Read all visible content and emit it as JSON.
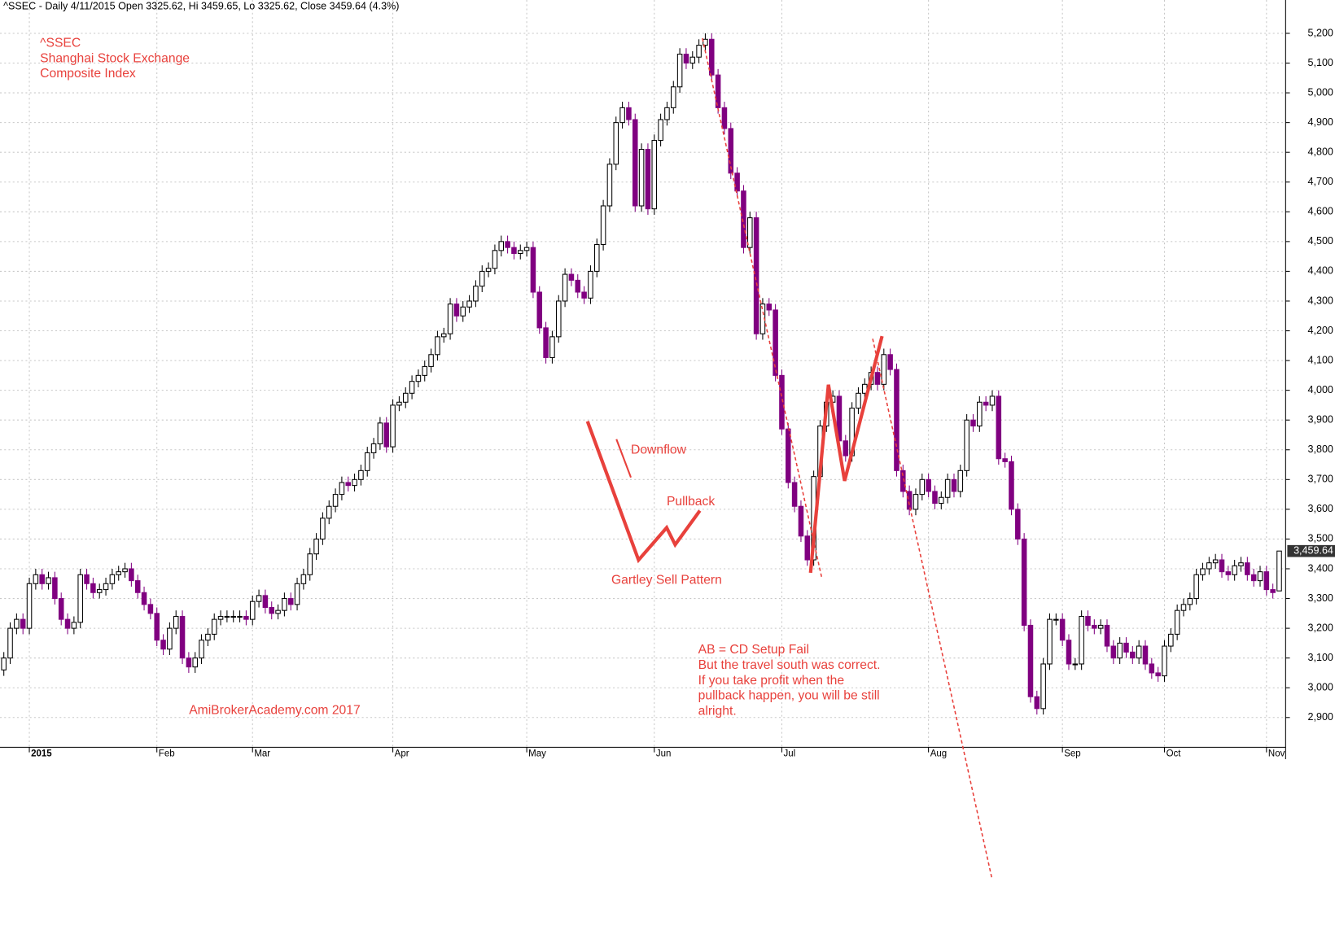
{
  "chart_data": {
    "type": "candlestick",
    "subtitle": "^SSEC - Daily 4/11/2015 Open 3325.62, Hi 3459.65, Lo 3325.62, Close 3459.64 (4.3%)",
    "title": [
      "^SSEC",
      "Shanghai Stock Exchange",
      "Composite Index"
    ],
    "annotations": [
      "AmiBrokerAcademy.com  2017",
      "Downflow",
      "Pullback",
      "Gartley Sell Pattern",
      "AB = CD Setup Fail",
      "But the travel south was correct.",
      "If you take profit when the",
      "pullback happen, you will be still",
      "alright."
    ],
    "last_label": "3,459.64",
    "up_color": "#ffffff",
    "down_color": "#800080",
    "grid": true,
    "xlim": [
      -0.6,
      201
    ],
    "ylim": [
      2800,
      5312
    ],
    "xticks": [
      {
        "value": 4,
        "label": "2015"
      },
      {
        "value": 24,
        "label": "Feb"
      },
      {
        "value": 39,
        "label": "Mar"
      },
      {
        "value": 61,
        "label": "Apr"
      },
      {
        "value": 82,
        "label": "May"
      },
      {
        "value": 102,
        "label": "Jun"
      },
      {
        "value": 122,
        "label": "Jul"
      },
      {
        "value": 145,
        "label": "Aug"
      },
      {
        "value": 166,
        "label": "Sep"
      },
      {
        "value": 182,
        "label": "Oct"
      },
      {
        "value": 198,
        "label": "Nov"
      }
    ],
    "yticks": [
      {
        "value": 2900,
        "label": "2,900"
      },
      {
        "value": 3000,
        "label": "3,000"
      },
      {
        "value": 3100,
        "label": "3,100"
      },
      {
        "value": 3200,
        "label": "3,200"
      },
      {
        "value": 3300,
        "label": "3,300"
      },
      {
        "value": 3400,
        "label": "3,400"
      },
      {
        "value": 3500,
        "label": "3,500"
      },
      {
        "value": 3600,
        "label": "3,600"
      },
      {
        "value": 3700,
        "label": "3,700"
      },
      {
        "value": 3800,
        "label": "3,800"
      },
      {
        "value": 3900,
        "label": "3,900"
      },
      {
        "value": 4000,
        "label": "4,000"
      },
      {
        "value": 4100,
        "label": "4,100"
      },
      {
        "value": 4200,
        "label": "4,200"
      },
      {
        "value": 4300,
        "label": "4,300"
      },
      {
        "value": 4400,
        "label": "4,400"
      },
      {
        "value": 4500,
        "label": "4,500"
      },
      {
        "value": 4600,
        "label": "4,600"
      },
      {
        "value": 4700,
        "label": "4,700"
      },
      {
        "value": 4800,
        "label": "4,800"
      },
      {
        "value": 4900,
        "label": "4,900"
      },
      {
        "value": 5000,
        "label": "5,000"
      },
      {
        "value": 5100,
        "label": "5,100"
      },
      {
        "value": 5200,
        "label": "5,200"
      }
    ],
    "open": [
      3060,
      3100,
      3200,
      3230,
      3200,
      3350,
      3380,
      3350,
      3370,
      3300,
      3230,
      3200,
      3220,
      3380,
      3350,
      3320,
      3330,
      3350,
      3380,
      3390,
      3400,
      3360,
      3320,
      3280,
      3250,
      3160,
      3130,
      3200,
      3240,
      3100,
      3070,
      3100,
      3160,
      3180,
      3230,
      3240,
      3240,
      3240,
      3240,
      3230,
      3290,
      3310,
      3270,
      3250,
      3260,
      3300,
      3280,
      3350,
      3380,
      3450,
      3500,
      3570,
      3610,
      3650,
      3690,
      3680,
      3700,
      3730,
      3790,
      3820,
      3890,
      3810,
      3950,
      3960,
      3990,
      4030,
      4050,
      4080,
      4120,
      4180,
      4190,
      4290,
      4250,
      4280,
      4300,
      4350,
      4400,
      4410,
      4470,
      4500,
      4480,
      4460,
      4470,
      4480,
      4330,
      4210,
      4110,
      4180,
      4300,
      4390,
      4370,
      4330,
      4310,
      4400,
      4490,
      4620,
      4760,
      4900,
      4950,
      4910,
      4620,
      4810,
      4610,
      4840,
      4910,
      4950,
      5020,
      5130,
      5100,
      5120,
      5160,
      5180,
      5060,
      4950,
      4880,
      4730,
      4670,
      4480,
      4580,
      4190,
      4290,
      4270,
      4050,
      3870,
      3690,
      3610,
      3510,
      3430,
      3710,
      3880,
      3960,
      3980,
      3830,
      3780,
      3940,
      3990,
      4020,
      4060,
      4020,
      4120,
      4070,
      3730,
      3660,
      3600,
      3650,
      3700,
      3660,
      3620,
      3640,
      3700,
      3660,
      3730,
      3900,
      3880,
      3960,
      3950,
      3980,
      3770,
      3760,
      3600,
      3500,
      3210,
      2970,
      2930,
      3080,
      3230,
      3230,
      3160,
      3080,
      3080,
      3240,
      3210,
      3200,
      3210,
      3140,
      3100,
      3150,
      3120,
      3100,
      3140,
      3080,
      3050,
      3040,
      3140,
      3180,
      3260,
      3280,
      3300,
      3380,
      3400,
      3420,
      3430,
      3390,
      3380,
      3410,
      3420,
      3380,
      3360,
      3390,
      3330,
      3325.62
    ],
    "high": [
      3120,
      3220,
      3250,
      3250,
      3370,
      3400,
      3400,
      3390,
      3390,
      3320,
      3250,
      3240,
      3400,
      3400,
      3370,
      3350,
      3370,
      3400,
      3410,
      3420,
      3420,
      3380,
      3340,
      3300,
      3270,
      3180,
      3220,
      3260,
      3260,
      3120,
      3120,
      3180,
      3200,
      3250,
      3260,
      3260,
      3260,
      3260,
      3260,
      3310,
      3330,
      3330,
      3290,
      3280,
      3320,
      3320,
      3370,
      3400,
      3470,
      3520,
      3590,
      3630,
      3670,
      3710,
      3710,
      3720,
      3750,
      3810,
      3840,
      3910,
      3910,
      3970,
      3980,
      4010,
      4050,
      4070,
      4100,
      4140,
      4200,
      4210,
      4310,
      4310,
      4300,
      4320,
      4370,
      4420,
      4430,
      4490,
      4520,
      4520,
      4500,
      4490,
      4500,
      4500,
      4350,
      4230,
      4200,
      4320,
      4410,
      4410,
      4390,
      4350,
      4420,
      4510,
      4640,
      4780,
      4920,
      4970,
      4970,
      4930,
      4830,
      4830,
      4860,
      4930,
      4970,
      5040,
      5150,
      5150,
      5140,
      5180,
      5200,
      5200,
      5080,
      4970,
      4900,
      4750,
      4690,
      4600,
      4600,
      4310,
      4310,
      4290,
      4070,
      3890,
      3710,
      3630,
      3530,
      3730,
      3900,
      3980,
      4000,
      4000,
      3850,
      3960,
      4010,
      4040,
      4080,
      4080,
      4140,
      4140,
      4090,
      3750,
      3680,
      3670,
      3720,
      3720,
      3680,
      3660,
      3720,
      3720,
      3750,
      3920,
      3920,
      3980,
      3980,
      4000,
      4000,
      3790,
      3780,
      3620,
      3520,
      3230,
      2990,
      3100,
      3250,
      3250,
      3250,
      3180,
      3100,
      3260,
      3260,
      3230,
      3230,
      3230,
      3160,
      3170,
      3170,
      3140,
      3160,
      3160,
      3100,
      3070,
      3160,
      3200,
      3280,
      3300,
      3320,
      3400,
      3420,
      3440,
      3450,
      3450,
      3410,
      3430,
      3440,
      3440,
      3400,
      3410,
      3410,
      3350,
      3459.65
    ],
    "low": [
      3040,
      3080,
      3180,
      3180,
      3180,
      3330,
      3330,
      3330,
      3280,
      3210,
      3180,
      3180,
      3200,
      3330,
      3300,
      3300,
      3310,
      3330,
      3360,
      3370,
      3340,
      3300,
      3260,
      3230,
      3140,
      3110,
      3110,
      3180,
      3080,
      3050,
      3050,
      3080,
      3140,
      3160,
      3210,
      3220,
      3220,
      3220,
      3210,
      3210,
      3270,
      3250,
      3230,
      3230,
      3240,
      3260,
      3260,
      3330,
      3360,
      3430,
      3480,
      3550,
      3590,
      3630,
      3660,
      3660,
      3680,
      3710,
      3770,
      3800,
      3790,
      3790,
      3930,
      3940,
      3970,
      4010,
      4030,
      4060,
      4100,
      4160,
      4170,
      4230,
      4230,
      4260,
      4280,
      4330,
      4380,
      4390,
      4450,
      4460,
      4440,
      4440,
      4450,
      4310,
      4190,
      4090,
      4090,
      4160,
      4280,
      4350,
      4310,
      4290,
      4290,
      4380,
      4470,
      4600,
      4740,
      4880,
      4890,
      4600,
      4600,
      4590,
      4590,
      4820,
      4890,
      4930,
      5000,
      5080,
      5080,
      5100,
      5140,
      5040,
      4930,
      4860,
      4710,
      4650,
      4460,
      4460,
      4170,
      4170,
      4250,
      4030,
      3850,
      3670,
      3590,
      3490,
      3410,
      3410,
      3690,
      3860,
      3940,
      3810,
      3760,
      3760,
      3920,
      3970,
      4000,
      4000,
      4000,
      4050,
      3710,
      3640,
      3580,
      3580,
      3630,
      3640,
      3600,
      3600,
      3620,
      3640,
      3640,
      3710,
      3860,
      3860,
      3930,
      3930,
      3750,
      3740,
      3580,
      3480,
      3190,
      2950,
      2910,
      2910,
      3060,
      3210,
      3140,
      3060,
      3060,
      3060,
      3190,
      3180,
      3180,
      3120,
      3080,
      3080,
      3100,
      3080,
      3080,
      3060,
      3030,
      3020,
      3020,
      3120,
      3160,
      3240,
      3260,
      3280,
      3360,
      3380,
      3400,
      3370,
      3360,
      3360,
      3390,
      3360,
      3340,
      3340,
      3310,
      3300,
      3325.62
    ],
    "close": [
      3100,
      3200,
      3230,
      3200,
      3350,
      3380,
      3350,
      3370,
      3300,
      3230,
      3200,
      3220,
      3380,
      3350,
      3320,
      3330,
      3350,
      3380,
      3390,
      3400,
      3360,
      3320,
      3280,
      3250,
      3160,
      3130,
      3200,
      3240,
      3100,
      3070,
      3100,
      3160,
      3180,
      3230,
      3240,
      3240,
      3240,
      3240,
      3230,
      3290,
      3310,
      3270,
      3250,
      3260,
      3300,
      3280,
      3350,
      3380,
      3450,
      3500,
      3570,
      3610,
      3650,
      3690,
      3680,
      3700,
      3730,
      3790,
      3820,
      3890,
      3810,
      3950,
      3960,
      3990,
      4030,
      4050,
      4080,
      4120,
      4180,
      4190,
      4290,
      4250,
      4280,
      4300,
      4350,
      4400,
      4410,
      4470,
      4500,
      4480,
      4460,
      4470,
      4480,
      4330,
      4210,
      4110,
      4180,
      4300,
      4390,
      4370,
      4330,
      4310,
      4400,
      4490,
      4620,
      4760,
      4900,
      4950,
      4910,
      4620,
      4810,
      4610,
      4840,
      4910,
      4950,
      5020,
      5130,
      5100,
      5120,
      5160,
      5180,
      5060,
      4950,
      4880,
      4730,
      4670,
      4480,
      4580,
      4190,
      4290,
      4270,
      4050,
      3870,
      3690,
      3610,
      3510,
      3430,
      3710,
      3880,
      3960,
      3980,
      3830,
      3780,
      3940,
      3990,
      4020,
      4060,
      4020,
      4120,
      4070,
      3730,
      3660,
      3600,
      3650,
      3700,
      3660,
      3620,
      3640,
      3700,
      3660,
      3730,
      3900,
      3880,
      3960,
      3950,
      3980,
      3770,
      3760,
      3600,
      3500,
      3210,
      2970,
      2930,
      3080,
      3230,
      3230,
      3160,
      3080,
      3080,
      3240,
      3210,
      3200,
      3210,
      3140,
      3100,
      3150,
      3120,
      3100,
      3140,
      3080,
      3050,
      3040,
      3140,
      3180,
      3260,
      3280,
      3300,
      3380,
      3400,
      3420,
      3430,
      3390,
      3380,
      3410,
      3420,
      3380,
      3360,
      3390,
      3330,
      3320,
      3459.64
    ]
  }
}
